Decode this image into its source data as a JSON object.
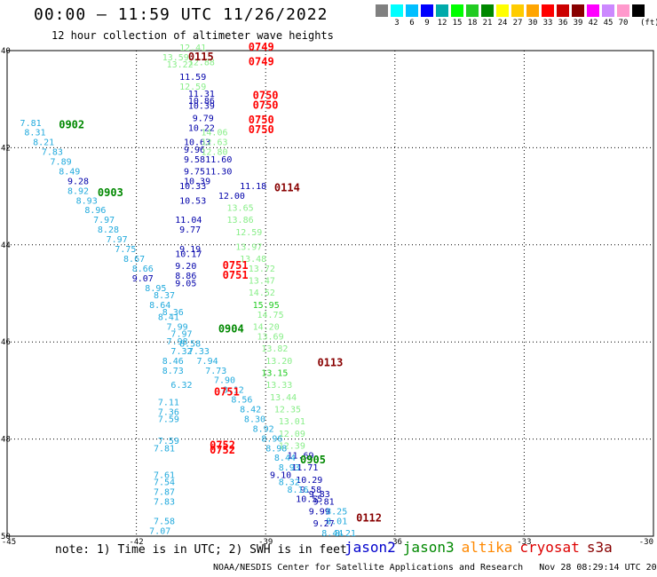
{
  "title": "00:00 — 11:59 UTC 11/26/2022",
  "subtitle": "12 hour collection of altimeter wave heights",
  "scale": {
    "colors": [
      "#808080",
      "#00ffff",
      "#00bfff",
      "#0000ff",
      "#00aaaa",
      "#00ff00",
      "#22cc22",
      "#008800",
      "#ffff00",
      "#ffcc00",
      "#ffa500",
      "#ff0000",
      "#cc0000",
      "#880000",
      "#ff00ff",
      "#cc88ff",
      "#ff99cc",
      "#000000"
    ],
    "labels": [
      "3",
      "6",
      "9",
      "12",
      "15",
      "18",
      "21",
      "24",
      "27",
      "30",
      "33",
      "36",
      "39",
      "42",
      "45",
      "70"
    ],
    "unit": "(ft)"
  },
  "axes": {
    "lat_ticks": [
      "40",
      "42",
      "44",
      "46",
      "48",
      "50"
    ],
    "lon_ticks": [
      "-45",
      "-42",
      "-39",
      "-36",
      "-33",
      "-30"
    ]
  },
  "note": "note: 1) Time is in UTC; 2) SWH is in feet",
  "legend": [
    {
      "name": "jason2",
      "color": "#0000cc"
    },
    {
      "name": "jason3",
      "color": "#008800"
    },
    {
      "name": "altika",
      "color": "#ff8800"
    },
    {
      "name": "cryosat",
      "color": "#dd0000"
    },
    {
      "name": "s3a",
      "color": "#880000"
    }
  ],
  "footer": "NOAA/NESDIS Center for Satellite Applications and Research   Nov 28 08:29:14 UTC 2022",
  "time_labels": [
    {
      "text": "0749",
      "lon": -39.4,
      "lat": 40.0,
      "color": "#ff0000"
    },
    {
      "text": "0115",
      "lon": -40.8,
      "lat": 40.2,
      "color": "#880000"
    },
    {
      "text": "0749",
      "lon": -39.4,
      "lat": 40.3,
      "color": "#ff0000"
    },
    {
      "text": "0750",
      "lon": -39.3,
      "lat": 41.0,
      "color": "#ff0000"
    },
    {
      "text": "0750",
      "lon": -39.3,
      "lat": 41.2,
      "color": "#ff0000"
    },
    {
      "text": "0750",
      "lon": -39.4,
      "lat": 41.5,
      "color": "#ff0000"
    },
    {
      "text": "0750",
      "lon": -39.4,
      "lat": 41.7,
      "color": "#ff0000"
    },
    {
      "text": "0902",
      "lon": -43.8,
      "lat": 41.6,
      "color": "#008800"
    },
    {
      "text": "0903",
      "lon": -42.9,
      "lat": 43.0,
      "color": "#008800"
    },
    {
      "text": "0114",
      "lon": -38.8,
      "lat": 42.9,
      "color": "#880000"
    },
    {
      "text": "0751",
      "lon": -40.0,
      "lat": 44.5,
      "color": "#ff0000"
    },
    {
      "text": "0751",
      "lon": -40.0,
      "lat": 44.7,
      "color": "#ff0000"
    },
    {
      "text": "0904",
      "lon": -40.1,
      "lat": 45.8,
      "color": "#008800"
    },
    {
      "text": "0113",
      "lon": -37.8,
      "lat": 46.5,
      "color": "#880000"
    },
    {
      "text": "0751",
      "lon": -40.2,
      "lat": 47.1,
      "color": "#ff0000"
    },
    {
      "text": "0752",
      "lon": -40.3,
      "lat": 48.2,
      "color": "#ff0000"
    },
    {
      "text": "0752",
      "lon": -40.3,
      "lat": 48.3,
      "color": "#ff0000"
    },
    {
      "text": "0905",
      "lon": -38.2,
      "lat": 48.5,
      "color": "#008800"
    },
    {
      "text": "0112",
      "lon": -36.9,
      "lat": 49.7,
      "color": "#880000"
    }
  ],
  "swh": [
    {
      "text": "12.41",
      "lon": -41.0,
      "lat": 40.0,
      "color": "#88ee88"
    },
    {
      "text": "13.59",
      "lon": -41.4,
      "lat": 40.2,
      "color": "#88ee88"
    },
    {
      "text": "13.22",
      "lon": -41.3,
      "lat": 40.35,
      "color": "#88ee88"
    },
    {
      "text": "12.88",
      "lon": -40.8,
      "lat": 40.3,
      "color": "#88ee88"
    },
    {
      "text": "11.59",
      "lon": -41.0,
      "lat": 40.6,
      "color": "#0000aa"
    },
    {
      "text": "12.59",
      "lon": -41.0,
      "lat": 40.8,
      "color": "#88ee88"
    },
    {
      "text": "11.31",
      "lon": -40.8,
      "lat": 40.95,
      "color": "#0000aa"
    },
    {
      "text": "10.86",
      "lon": -40.8,
      "lat": 41.1,
      "color": "#0000aa"
    },
    {
      "text": "10.39",
      "lon": -40.8,
      "lat": 41.2,
      "color": "#0000aa"
    },
    {
      "text": "9.79",
      "lon": -40.7,
      "lat": 41.45,
      "color": "#0000aa"
    },
    {
      "text": "10.22",
      "lon": -40.8,
      "lat": 41.65,
      "color": "#0000aa"
    },
    {
      "text": "14.06",
      "lon": -40.5,
      "lat": 41.75,
      "color": "#88ee88"
    },
    {
      "text": "10.63",
      "lon": -40.9,
      "lat": 41.95,
      "color": "#0000aa"
    },
    {
      "text": "12.63",
      "lon": -40.5,
      "lat": 41.95,
      "color": "#88ee88"
    },
    {
      "text": "9.96",
      "lon": -40.9,
      "lat": 42.1,
      "color": "#0000aa"
    },
    {
      "text": "12.80",
      "lon": -40.5,
      "lat": 42.15,
      "color": "#88ee88"
    },
    {
      "text": "9.58",
      "lon": -40.9,
      "lat": 42.3,
      "color": "#0000aa"
    },
    {
      "text": "11.60",
      "lon": -40.4,
      "lat": 42.3,
      "color": "#0000aa"
    },
    {
      "text": "9.75",
      "lon": -40.9,
      "lat": 42.55,
      "color": "#0000aa"
    },
    {
      "text": "11.30",
      "lon": -40.4,
      "lat": 42.55,
      "color": "#0000aa"
    },
    {
      "text": "10.39",
      "lon": -40.9,
      "lat": 42.75,
      "color": "#0000aa"
    },
    {
      "text": "11.18",
      "lon": -39.6,
      "lat": 42.85,
      "color": "#0000aa"
    },
    {
      "text": "10.33",
      "lon": -41.0,
      "lat": 42.85,
      "color": "#0000aa"
    },
    {
      "text": "12.00",
      "lon": -40.1,
      "lat": 43.05,
      "color": "#0000aa"
    },
    {
      "text": "10.53",
      "lon": -41.0,
      "lat": 43.15,
      "color": "#0000aa"
    },
    {
      "text": "13.65",
      "lon": -39.9,
      "lat": 43.3,
      "color": "#88ee88"
    },
    {
      "text": "11.04",
      "lon": -41.1,
      "lat": 43.55,
      "color": "#0000aa"
    },
    {
      "text": "13.86",
      "lon": -39.9,
      "lat": 43.55,
      "color": "#88ee88"
    },
    {
      "text": "9.77",
      "lon": -41.0,
      "lat": 43.75,
      "color": "#0000aa"
    },
    {
      "text": "12.59",
      "lon": -39.7,
      "lat": 43.8,
      "color": "#88ee88"
    },
    {
      "text": "9.19",
      "lon": -41.0,
      "lat": 44.15,
      "color": "#0000aa"
    },
    {
      "text": "13.97",
      "lon": -39.7,
      "lat": 44.1,
      "color": "#88ee88"
    },
    {
      "text": "10.17",
      "lon": -41.1,
      "lat": 44.25,
      "color": "#0000aa"
    },
    {
      "text": "13.48",
      "lon": -39.6,
      "lat": 44.35,
      "color": "#88ee88"
    },
    {
      "text": "9.20",
      "lon": -41.1,
      "lat": 44.5,
      "color": "#0000aa"
    },
    {
      "text": "13.72",
      "lon": -39.4,
      "lat": 44.55,
      "color": "#88ee88"
    },
    {
      "text": "8.86",
      "lon": -41.1,
      "lat": 44.7,
      "color": "#0000aa"
    },
    {
      "text": "13.47",
      "lon": -39.4,
      "lat": 44.8,
      "color": "#88ee88"
    },
    {
      "text": "9.05",
      "lon": -41.1,
      "lat": 44.85,
      "color": "#0000aa"
    },
    {
      "text": "14.52",
      "lon": -39.4,
      "lat": 45.05,
      "color": "#88ee88"
    },
    {
      "text": "15.95",
      "lon": -39.3,
      "lat": 45.3,
      "color": "#22cc22"
    },
    {
      "text": "14.75",
      "lon": -39.2,
      "lat": 45.5,
      "color": "#88ee88"
    },
    {
      "text": "14.20",
      "lon": -39.3,
      "lat": 45.75,
      "color": "#88ee88"
    },
    {
      "text": "13.69",
      "lon": -39.2,
      "lat": 45.95,
      "color": "#88ee88"
    },
    {
      "text": "13.82",
      "lon": -39.1,
      "lat": 46.2,
      "color": "#88ee88"
    },
    {
      "text": "13.20",
      "lon": -39.0,
      "lat": 46.45,
      "color": "#88ee88"
    },
    {
      "text": "13.15",
      "lon": -39.1,
      "lat": 46.7,
      "color": "#22cc22"
    },
    {
      "text": "13.33",
      "lon": -39.0,
      "lat": 46.95,
      "color": "#88ee88"
    },
    {
      "text": "13.44",
      "lon": -38.9,
      "lat": 47.2,
      "color": "#88ee88"
    },
    {
      "text": "12.35",
      "lon": -38.8,
      "lat": 47.45,
      "color": "#88ee88"
    },
    {
      "text": "13.01",
      "lon": -38.7,
      "lat": 47.7,
      "color": "#88ee88"
    },
    {
      "text": "12.09",
      "lon": -38.7,
      "lat": 47.95,
      "color": "#88ee88"
    },
    {
      "text": "12.39",
      "lon": -38.7,
      "lat": 48.2,
      "color": "#88ee88"
    },
    {
      "text": "11.69",
      "lon": -38.5,
      "lat": 48.4,
      "color": "#0000aa"
    },
    {
      "text": "11.71",
      "lon": -38.4,
      "lat": 48.65,
      "color": "#0000aa"
    },
    {
      "text": "10.29",
      "lon": -38.3,
      "lat": 48.9,
      "color": "#0000aa"
    },
    {
      "text": "9.58",
      "lon": -38.2,
      "lat": 49.1,
      "color": "#0000aa"
    },
    {
      "text": "9.83",
      "lon": -38.0,
      "lat": 49.2,
      "color": "#0000aa"
    },
    {
      "text": "10.55",
      "lon": -38.3,
      "lat": 49.3,
      "color": "#0000aa"
    },
    {
      "text": "9.81",
      "lon": -37.9,
      "lat": 49.35,
      "color": "#0000aa"
    },
    {
      "text": "9.99",
      "lon": -38.0,
      "lat": 49.55,
      "color": "#0000aa"
    },
    {
      "text": "8.25",
      "lon": -37.6,
      "lat": 49.55,
      "color": "#22aadd"
    },
    {
      "text": "8.01",
      "lon": -37.6,
      "lat": 49.75,
      "color": "#22aadd"
    },
    {
      "text": "9.27",
      "lon": -37.9,
      "lat": 49.8,
      "color": "#0000aa"
    },
    {
      "text": "8.21",
      "lon": -37.4,
      "lat": 50.0,
      "color": "#22aadd"
    },
    {
      "text": "8.44",
      "lon": -37.7,
      "lat": 50.0,
      "color": "#22aadd"
    },
    {
      "text": "7.81",
      "lon": -44.7,
      "lat": 41.55,
      "color": "#22aadd"
    },
    {
      "text": "8.31",
      "lon": -44.6,
      "lat": 41.75,
      "color": "#22aadd"
    },
    {
      "text": "8.21",
      "lon": -44.4,
      "lat": 41.95,
      "color": "#22aadd"
    },
    {
      "text": "7.83",
      "lon": -44.2,
      "lat": 42.15,
      "color": "#22aadd"
    },
    {
      "text": "7.89",
      "lon": -44.0,
      "lat": 42.35,
      "color": "#22aadd"
    },
    {
      "text": "8.49",
      "lon": -43.8,
      "lat": 42.55,
      "color": "#22aadd"
    },
    {
      "text": "9.28",
      "lon": -43.6,
      "lat": 42.75,
      "color": "#0000aa"
    },
    {
      "text": "8.92",
      "lon": -43.6,
      "lat": 42.95,
      "color": "#22aadd"
    },
    {
      "text": "8.93",
      "lon": -43.4,
      "lat": 43.15,
      "color": "#22aadd"
    },
    {
      "text": "8.96",
      "lon": -43.2,
      "lat": 43.35,
      "color": "#22aadd"
    },
    {
      "text": "7.97",
      "lon": -43.0,
      "lat": 43.55,
      "color": "#22aadd"
    },
    {
      "text": "8.28",
      "lon": -42.9,
      "lat": 43.75,
      "color": "#22aadd"
    },
    {
      "text": "7.97",
      "lon": -42.7,
      "lat": 43.95,
      "color": "#22aadd"
    },
    {
      "text": "7.75",
      "lon": -42.5,
      "lat": 44.15,
      "color": "#22aadd"
    },
    {
      "text": "8.67",
      "lon": -42.3,
      "lat": 44.35,
      "color": "#22aadd"
    },
    {
      "text": "8.66",
      "lon": -42.1,
      "lat": 44.55,
      "color": "#22aadd"
    },
    {
      "text": "9.07",
      "lon": -42.1,
      "lat": 44.75,
      "color": "#0000aa"
    },
    {
      "text": "8.95",
      "lon": -41.8,
      "lat": 44.95,
      "color": "#22aadd"
    },
    {
      "text": "8.37",
      "lon": -41.6,
      "lat": 45.1,
      "color": "#22aadd"
    },
    {
      "text": "8.64",
      "lon": -41.7,
      "lat": 45.3,
      "color": "#22aadd"
    },
    {
      "text": "8.36",
      "lon": -41.4,
      "lat": 45.45,
      "color": "#22aadd"
    },
    {
      "text": "8.41",
      "lon": -41.5,
      "lat": 45.55,
      "color": "#22aadd"
    },
    {
      "text": "7.99",
      "lon": -41.3,
      "lat": 45.75,
      "color": "#22aadd"
    },
    {
      "text": "7.97",
      "lon": -41.2,
      "lat": 45.9,
      "color": "#22aadd"
    },
    {
      "text": "7.98",
      "lon": -41.3,
      "lat": 46.05,
      "color": "#22aadd"
    },
    {
      "text": "8.58",
      "lon": -41.0,
      "lat": 46.1,
      "color": "#22aadd"
    },
    {
      "text": "7.32",
      "lon": -41.2,
      "lat": 46.25,
      "color": "#22aadd"
    },
    {
      "text": "7.33",
      "lon": -40.8,
      "lat": 46.25,
      "color": "#22aadd"
    },
    {
      "text": "7.94",
      "lon": -40.6,
      "lat": 46.45,
      "color": "#22aadd"
    },
    {
      "text": "8.46",
      "lon": -41.4,
      "lat": 46.45,
      "color": "#22aadd"
    },
    {
      "text": "7.73",
      "lon": -40.4,
      "lat": 46.65,
      "color": "#22aadd"
    },
    {
      "text": "8.73",
      "lon": -41.4,
      "lat": 46.65,
      "color": "#22aadd"
    },
    {
      "text": "7.90",
      "lon": -40.2,
      "lat": 46.85,
      "color": "#22aadd"
    },
    {
      "text": "6.32",
      "lon": -41.2,
      "lat": 46.95,
      "color": "#22aadd"
    },
    {
      "text": "8.12",
      "lon": -40.0,
      "lat": 47.05,
      "color": "#22aadd"
    },
    {
      "text": "8.56",
      "lon": -39.8,
      "lat": 47.25,
      "color": "#22aadd"
    },
    {
      "text": "7.11",
      "lon": -41.5,
      "lat": 47.3,
      "color": "#22aadd"
    },
    {
      "text": "8.42",
      "lon": -39.6,
      "lat": 47.45,
      "color": "#22aadd"
    },
    {
      "text": "7.36",
      "lon": -41.5,
      "lat": 47.5,
      "color": "#22aadd"
    },
    {
      "text": "7.59",
      "lon": -41.5,
      "lat": 47.65,
      "color": "#22aadd"
    },
    {
      "text": "8.30",
      "lon": -39.5,
      "lat": 47.65,
      "color": "#22aadd"
    },
    {
      "text": "8.92",
      "lon": -39.3,
      "lat": 47.85,
      "color": "#22aadd"
    },
    {
      "text": "8.96",
      "lon": -39.1,
      "lat": 48.05,
      "color": "#22aadd"
    },
    {
      "text": "8.98",
      "lon": -39.0,
      "lat": 48.25,
      "color": "#22aadd"
    },
    {
      "text": "7.59",
      "lon": -41.5,
      "lat": 48.1,
      "color": "#22aadd"
    },
    {
      "text": "7.81",
      "lon": -41.6,
      "lat": 48.25,
      "color": "#22aadd"
    },
    {
      "text": "8.44",
      "lon": -38.8,
      "lat": 48.45,
      "color": "#22aadd"
    },
    {
      "text": "8.93",
      "lon": -38.7,
      "lat": 48.65,
      "color": "#22aadd"
    },
    {
      "text": "9.10",
      "lon": -38.9,
      "lat": 48.8,
      "color": "#0000aa"
    },
    {
      "text": "8.32",
      "lon": -38.7,
      "lat": 48.95,
      "color": "#22aadd"
    },
    {
      "text": "8.16",
      "lon": -38.5,
      "lat": 49.1,
      "color": "#22aadd"
    },
    {
      "text": "7.61",
      "lon": -41.6,
      "lat": 48.8,
      "color": "#22aadd"
    },
    {
      "text": "7.54",
      "lon": -41.6,
      "lat": 48.95,
      "color": "#22aadd"
    },
    {
      "text": "7.87",
      "lon": -41.6,
      "lat": 49.15,
      "color": "#22aadd"
    },
    {
      "text": "7.83",
      "lon": -41.6,
      "lat": 49.35,
      "color": "#22aadd"
    },
    {
      "text": "7.58",
      "lon": -41.6,
      "lat": 49.75,
      "color": "#22aadd"
    },
    {
      "text": "7.07",
      "lon": -41.7,
      "lat": 49.95,
      "color": "#22aadd"
    }
  ]
}
